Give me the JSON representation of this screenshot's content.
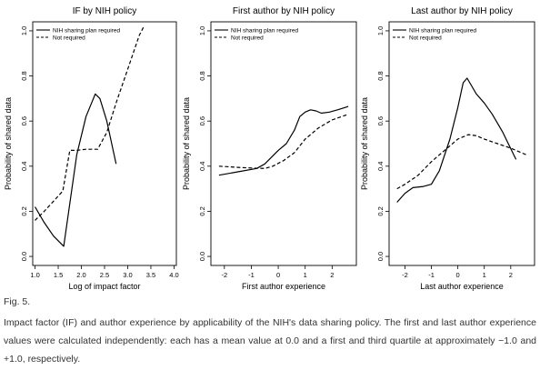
{
  "chart_data": [
    {
      "type": "line",
      "title": "IF by NIH policy",
      "xlabel": "Log of impact factor",
      "ylabel": "Probability of shared data",
      "xlim": [
        0.95,
        4.05
      ],
      "ylim": [
        0.0,
        1.0
      ],
      "x_ticks": [
        1.0,
        1.5,
        2.0,
        2.5,
        3.0,
        3.5,
        4.0
      ],
      "x_tick_labels": [
        "1.0",
        "1.5",
        "2.0",
        "2.5",
        "3.0",
        "3.5",
        "4.0"
      ],
      "y_ticks": [
        0.0,
        0.2,
        0.4,
        0.6,
        0.8,
        1.0
      ],
      "y_tick_labels": [
        "0.0",
        "0.2",
        "0.4",
        "0.6",
        "0.8",
        "1.0"
      ],
      "legend_position": "top-left",
      "series": [
        {
          "name": "NIH sharing plan required",
          "style": "solid",
          "x": [
            1.0,
            1.2,
            1.4,
            1.62,
            1.9,
            2.1,
            2.2,
            2.3,
            2.4,
            2.55,
            2.75
          ],
          "y": [
            0.22,
            0.15,
            0.09,
            0.045,
            0.45,
            0.62,
            0.67,
            0.72,
            0.7,
            0.6,
            0.41
          ]
        },
        {
          "name": "Not required",
          "style": "dashed",
          "x": [
            1.0,
            1.2,
            1.4,
            1.6,
            1.75,
            1.9,
            2.1,
            2.35,
            2.55,
            2.75,
            3.0,
            3.25,
            3.35
          ],
          "y": [
            0.16,
            0.2,
            0.245,
            0.29,
            0.47,
            0.47,
            0.475,
            0.475,
            0.55,
            0.68,
            0.83,
            0.98,
            1.02
          ]
        }
      ]
    },
    {
      "type": "line",
      "title": "First author by NIH policy",
      "xlabel": "First author experience",
      "ylabel": "Probability of shared data",
      "xlim": [
        -2.5,
        2.9
      ],
      "ylim": [
        0.0,
        1.0
      ],
      "x_ticks": [
        -2,
        -1,
        0,
        1,
        2
      ],
      "x_tick_labels": [
        "-2",
        "-1",
        "0",
        "1",
        "2"
      ],
      "y_ticks": [
        0.0,
        0.2,
        0.4,
        0.6,
        0.8,
        1.0
      ],
      "y_tick_labels": [
        "0.0",
        "0.2",
        "0.4",
        "0.6",
        "0.8",
        "1.0"
      ],
      "legend_position": "top-left",
      "series": [
        {
          "name": "NIH sharing plan required",
          "style": "solid",
          "x": [
            -2.2,
            -1.5,
            -0.8,
            -0.5,
            0.0,
            0.3,
            0.6,
            0.8,
            1.0,
            1.2,
            1.4,
            1.6,
            1.9,
            2.2,
            2.6
          ],
          "y": [
            0.36,
            0.375,
            0.39,
            0.41,
            0.47,
            0.5,
            0.56,
            0.62,
            0.64,
            0.65,
            0.645,
            0.635,
            0.64,
            0.65,
            0.665
          ]
        },
        {
          "name": "Not required",
          "style": "dashed",
          "x": [
            -2.2,
            -1.5,
            -1.0,
            -0.5,
            -0.2,
            0.2,
            0.6,
            1.0,
            1.5,
            2.0,
            2.6
          ],
          "y": [
            0.4,
            0.395,
            0.392,
            0.39,
            0.4,
            0.425,
            0.46,
            0.52,
            0.57,
            0.605,
            0.63
          ]
        }
      ]
    },
    {
      "type": "line",
      "title": "Last author by NIH policy",
      "xlabel": "Last author experience",
      "ylabel": "Probability of shared data",
      "xlim": [
        -2.6,
        2.9
      ],
      "ylim": [
        0.0,
        1.0
      ],
      "x_ticks": [
        -2,
        -1,
        0,
        1,
        2
      ],
      "x_tick_labels": [
        "-2",
        "-1",
        "0",
        "1",
        "2"
      ],
      "y_ticks": [
        0.0,
        0.2,
        0.4,
        0.6,
        0.8,
        1.0
      ],
      "y_tick_labels": [
        "0.0",
        "0.2",
        "0.4",
        "0.6",
        "0.8",
        "1.0"
      ],
      "legend_position": "top-left",
      "series": [
        {
          "name": "NIH sharing plan required",
          "style": "solid",
          "x": [
            -2.3,
            -2.0,
            -1.7,
            -1.3,
            -1.0,
            -0.7,
            -0.3,
            0.0,
            0.2,
            0.35,
            0.5,
            0.7,
            1.0,
            1.3,
            1.7,
            2.2
          ],
          "y": [
            0.24,
            0.28,
            0.305,
            0.31,
            0.32,
            0.38,
            0.52,
            0.66,
            0.77,
            0.79,
            0.76,
            0.72,
            0.68,
            0.63,
            0.55,
            0.43
          ]
        },
        {
          "name": "Not required",
          "style": "dashed",
          "x": [
            -2.3,
            -2.0,
            -1.5,
            -1.0,
            -0.5,
            0.0,
            0.4,
            0.7,
            1.0,
            1.5,
            2.0,
            2.6
          ],
          "y": [
            0.3,
            0.32,
            0.36,
            0.42,
            0.47,
            0.52,
            0.54,
            0.535,
            0.52,
            0.5,
            0.48,
            0.45
          ]
        }
      ]
    }
  ],
  "caption": {
    "label": "Fig. 5.",
    "text": "Impact factor (IF) and author experience by applicability of the NIH's data sharing policy. The first and last author experience values were calculated independently: each has a mean value at 0.0 and a first and third quartile at approximately −1.0 and +1.0, respectively."
  }
}
